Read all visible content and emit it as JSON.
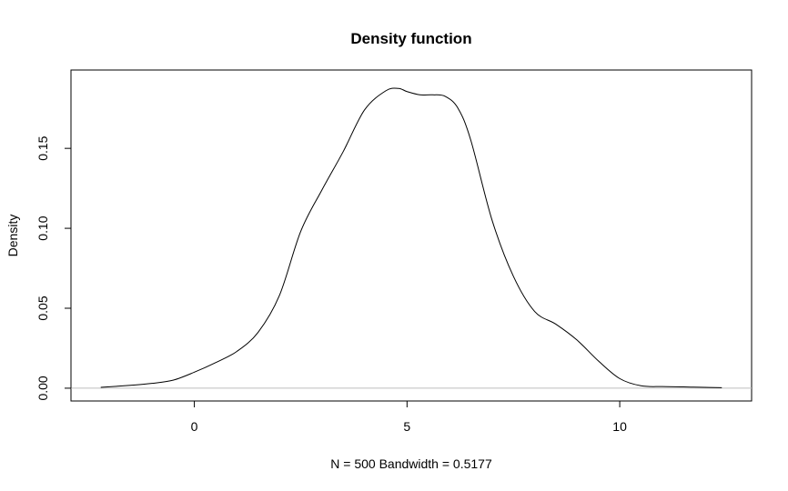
{
  "chart_data": {
    "type": "line",
    "title": "Density function",
    "xlabel": "N = 500   Bandwidth = 0.5177",
    "ylabel": "Density",
    "xlim": [
      -2.9,
      13.1
    ],
    "ylim": [
      -0.008,
      0.199
    ],
    "x_ticks": [
      0,
      5,
      10
    ],
    "x_tick_labels": [
      "0",
      "5",
      "10"
    ],
    "y_ticks": [
      0.0,
      0.05,
      0.1,
      0.15
    ],
    "y_tick_labels": [
      "0.00",
      "0.05",
      "0.10",
      "0.15"
    ],
    "baseline": 0,
    "grid": false,
    "line_color": "#000000",
    "baseline_color": "#bebebe",
    "series": [
      {
        "x": [
          -2.2,
          -1.5,
          -1.0,
          -0.5,
          0.0,
          0.5,
          1.0,
          1.5,
          2.0,
          2.5,
          3.0,
          3.5,
          4.0,
          4.5,
          4.8,
          5.0,
          5.3,
          5.6,
          5.9,
          6.2,
          6.5,
          7.0,
          7.5,
          8.0,
          8.5,
          9.0,
          9.5,
          10.0,
          10.5,
          11.0,
          11.5,
          12.0,
          12.4
        ],
        "y": [
          0.0005,
          0.0018,
          0.003,
          0.005,
          0.01,
          0.016,
          0.023,
          0.035,
          0.058,
          0.098,
          0.124,
          0.148,
          0.174,
          0.186,
          0.1875,
          0.1855,
          0.1835,
          0.1835,
          0.1825,
          0.175,
          0.155,
          0.105,
          0.07,
          0.048,
          0.04,
          0.03,
          0.017,
          0.006,
          0.0015,
          0.001,
          0.0008,
          0.0005,
          0.0003
        ]
      }
    ]
  }
}
